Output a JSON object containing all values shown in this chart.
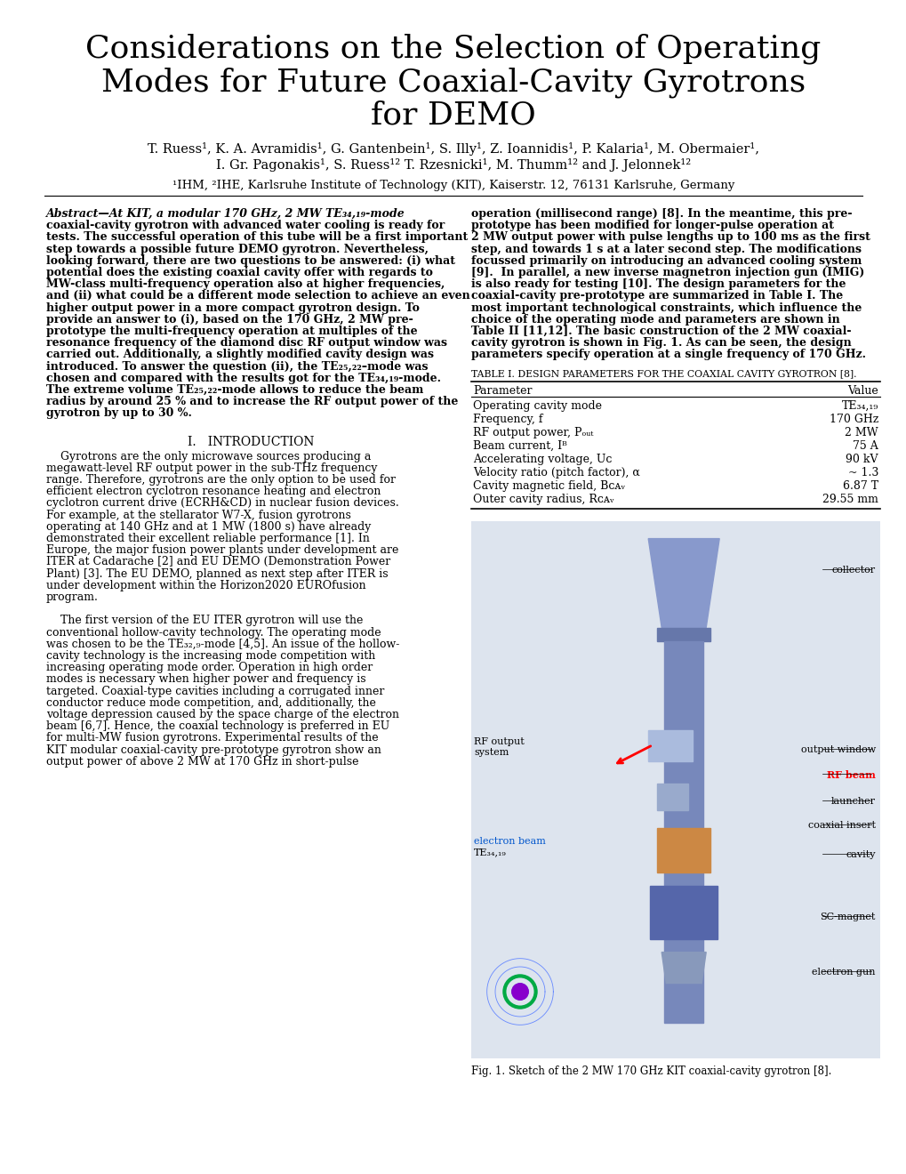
{
  "title_line1": "Considerations on the Selection of Operating",
  "title_line2": "Modes for Future Coaxial-Cavity Gyrotrons",
  "title_line3": "for DEMO",
  "authors_line1": "T. Ruess¹, K. A. Avramidis¹, G. Gantenbein¹, S. Illy¹, Z. Ioannidis¹, P. Kalaria¹, M. Obermaier¹,",
  "authors_line2": "I. Gr. Pagonakis¹, S. Ruess¹² T. Rzesnicki¹, M. Thumm¹² and J. Jelonnek¹²",
  "affiliation": "¹IHM, ²IHE, Karlsruhe Institute of Technology (KIT), Kaiserstr. 12, 76131 Karlsruhe, Germany",
  "abstract_lines_left": [
    "Abstract—At KIT, a modular 170 GHz, 2 MW TE₃₄,₁₉-mode",
    "coaxial-cavity gyrotron with advanced water cooling is ready for",
    "tests. The successful operation of this tube will be a first important",
    "step towards a possible future DEMO gyrotron. Nevertheless,",
    "looking forward, there are two questions to be answered: (i) what",
    "potential does the existing coaxial cavity offer with regards to",
    "MW-class multi-frequency operation also at higher frequencies,",
    "and (ii) what could be a different mode selection to achieve an even",
    "higher output power in a more compact gyrotron design. To",
    "provide an answer to (i), based on the 170 GHz, 2 MW pre-",
    "prototype the multi-frequency operation at multiples of the",
    "resonance frequency of the diamond disc RF output window was",
    "carried out. Additionally, a slightly modified cavity design was",
    "introduced. To answer the question (ii), the TE₂₅,₂₂–mode was",
    "chosen and compared with the results got for the TE₃₄,₁₉-mode.",
    "The extreme volume TE₂₅,₂₂-mode allows to reduce the beam",
    "radius by around 25 % and to increase the RF output power of the",
    "gyrotron by up to 30 %."
  ],
  "abstract_lines_right": [
    "operation (millisecond range) [8]. In the meantime, this pre-",
    "prototype has been modified for longer-pulse operation at",
    "2 MW output power with pulse lengths up to 100 ms as the first",
    "step, and towards 1 s at a later second step. The modifications",
    "focussed primarily on introducing an advanced cooling system",
    "[9].  In parallel, a new inverse magnetron injection gun (IMIG)",
    "is also ready for testing [10]. The design parameters for the",
    "coaxial-cavity pre-prototype are summarized in Table I. The",
    "most important technological constraints, which influence the",
    "choice of the operating mode and parameters are shown in",
    "Table II [11,12]. The basic construction of the 2 MW coaxial-",
    "cavity gyrotron is shown in Fig. 1. As can be seen, the design",
    "parameters specify operation at a single frequency of 170 GHz."
  ],
  "table1_caption": "TABLE I. DESIGN PARAMETERS FOR THE COAXIAL CAVITY GYROTRON [8].",
  "table1_rows": [
    [
      "Parameter",
      "Value"
    ],
    [
      "Operating cavity mode",
      "TE₃₄,₁₉"
    ],
    [
      "Frequency, f",
      "170 GHz"
    ],
    [
      "RF output power, Pₒᵤₜ",
      "2 MW"
    ],
    [
      "Beam current, Iᴮ",
      "75 A"
    ],
    [
      "Accelerating voltage, Uᴄ",
      "90 kV"
    ],
    [
      "Velocity ratio (pitch factor), α",
      "~ 1.3"
    ],
    [
      "Cavity magnetic field, Bᴄᴀᵥ",
      "6.87 T"
    ],
    [
      "Outer cavity radius, Rᴄᴀᵥ",
      "29.55 mm"
    ]
  ],
  "intro_section_title": "I.   INTRODUCTION",
  "intro_lines": [
    "    Gyrotrons are the only microwave sources producing a",
    "megawatt-level RF output power in the sub-THz frequency",
    "range. Therefore, gyrotrons are the only option to be used for",
    "efficient electron cyclotron resonance heating and electron",
    "cyclotron current drive (ECRH&CD) in nuclear fusion devices.",
    "For example, at the stellarator W7-X, fusion gyrotrons",
    "operating at 140 GHz and at 1 MW (1800 s) have already",
    "demonstrated their excellent reliable performance [1]. In",
    "Europe, the major fusion power plants under development are",
    "ITER at Cadarache [2] and EU DEMO (Demonstration Power",
    "Plant) [3]. The EU DEMO, planned as next step after ITER is",
    "under development within the Horizon2020 EUROfusion",
    "program.",
    "",
    "    The first version of the EU ITER gyrotron will use the",
    "conventional hollow-cavity technology. The operating mode",
    "was chosen to be the TE₃₂,₉-mode [4,5]. An issue of the hollow-",
    "cavity technology is the increasing mode competition with",
    "increasing operating mode order. Operation in high order",
    "modes is necessary when higher power and frequency is",
    "targeted. Coaxial-type cavities including a corrugated inner",
    "conductor reduce mode competition, and, additionally, the",
    "voltage depression caused by the space charge of the electron",
    "beam [6,7]. Hence, the coaxial technology is preferred in EU",
    "for multi-MW fusion gyrotrons. Experimental results of the",
    "KIT modular coaxial-cavity pre-prototype gyrotron show an",
    "output power of above 2 MW at 170 GHz in short-pulse"
  ],
  "fig1_caption": "Fig. 1. Sketch of the 2 MW 170 GHz KIT coaxial-cavity gyrotron [8].",
  "fig_labels_right": [
    "collector",
    "output window",
    "RF beam",
    "launcher",
    "coaxial insert",
    "cavity",
    "SC-magnet",
    "electron gun"
  ],
  "fig_labels_left": [
    "RF output\nsystem",
    "electron beam",
    "TE₃₄,₁₉"
  ],
  "bg": "#ffffff"
}
